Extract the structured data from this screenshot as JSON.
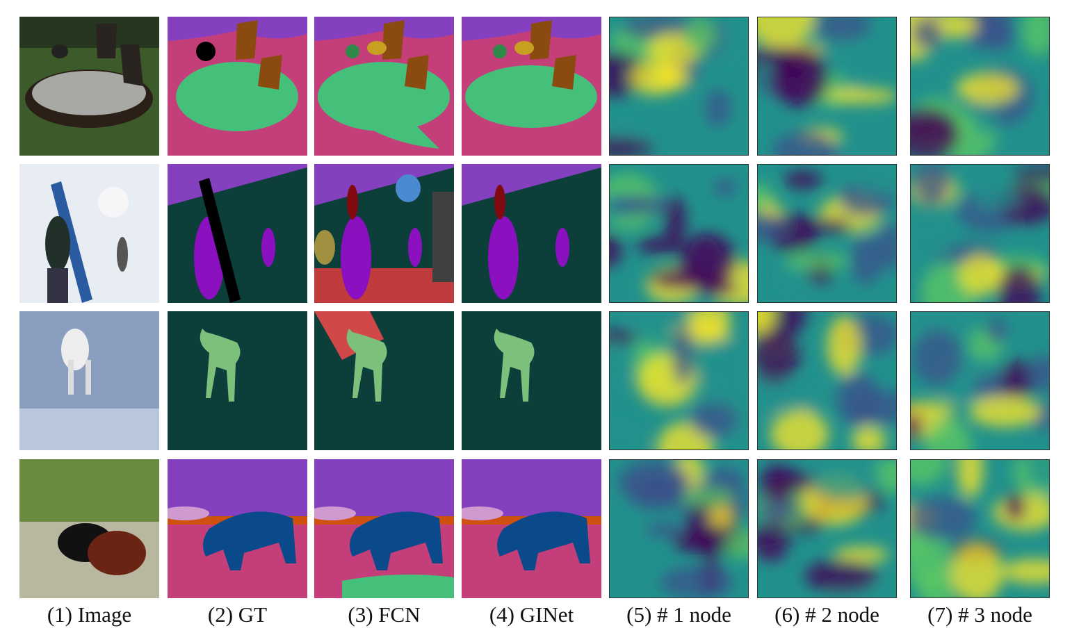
{
  "column_labels": [
    "(1) Image",
    "(2) GT",
    "(3) FCN",
    "(4) GINet",
    "(5) # 1 node",
    "(6) # 2 node",
    "(7) # 3 node"
  ]
}
